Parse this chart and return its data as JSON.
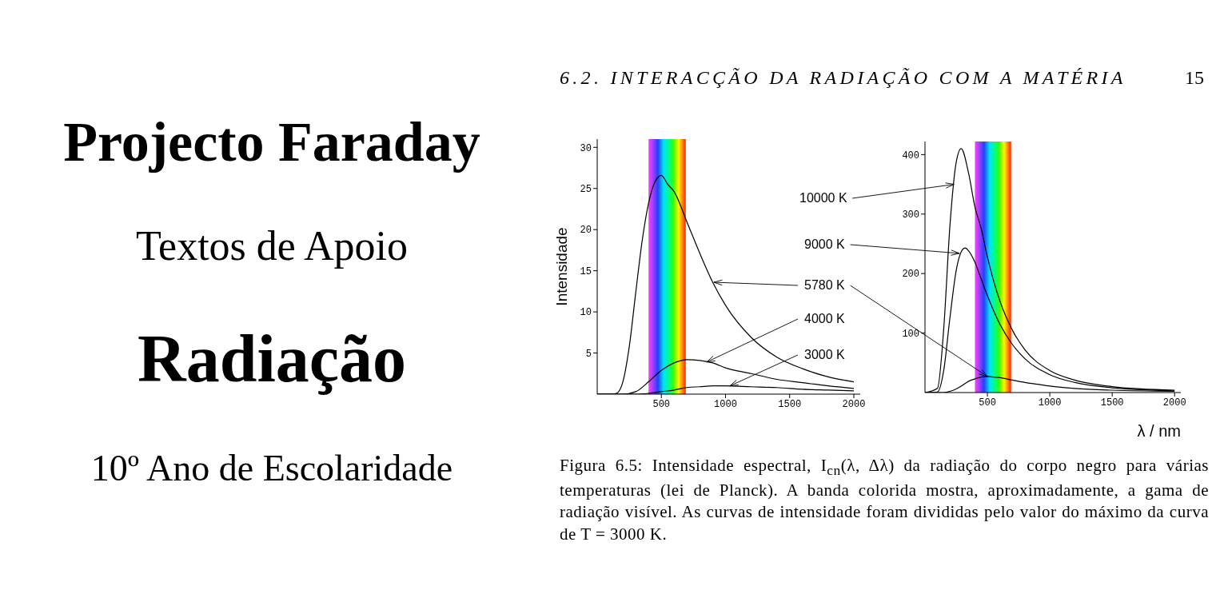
{
  "chart_data": [
    {
      "type": "line",
      "ylabel": "Intensidade",
      "xlim": [
        0,
        2050
      ],
      "ylim": [
        0,
        31
      ],
      "xticks": [
        500,
        1000,
        1500,
        2000
      ],
      "yticks": [
        5,
        10,
        15,
        20,
        25,
        30
      ],
      "annotations": [
        "6.2.  INTERACÇÃO DA RADIAÇÃO COM A MATÉRIA",
        "15",
        "Projecto Faraday",
        "Textos de Apoio",
        "Radiação",
        "10º Ano de Escolaridade",
        {
          "text": "5780 K",
          "x": 909,
          "y": 13.6
        },
        {
          "text": "4000 K",
          "x": 853,
          "y": 3.9
        },
        {
          "text": "3000 K",
          "x": 1034,
          "y": 1.0
        }
      ],
      "bands": [
        {
          "axis": "x",
          "from": 400,
          "to": 690
        }
      ],
      "series": [
        {
          "color": "#000000",
          "x": [
            0,
            100,
            150,
            200,
            250,
            300,
            350,
            400,
            450,
            500,
            550,
            600,
            700,
            800,
            900,
            1000,
            1200,
            1400,
            1600,
            1800,
            2000
          ],
          "values": [
            0,
            0,
            0.1,
            1.5,
            5.8,
            12.3,
            18.6,
            23.2,
            25.8,
            26.6,
            25.5,
            24.6,
            20.9,
            17.1,
            13.6,
            10.8,
            6.9,
            4.5,
            3.1,
            2.1,
            1.5
          ]
        },
        {
          "color": "#000000",
          "x": [
            0,
            200,
            300,
            400,
            500,
            600,
            700,
            800,
            900,
            1000,
            1200,
            1400,
            1600,
            1800,
            2000
          ],
          "values": [
            0,
            0,
            0.3,
            1.5,
            2.9,
            3.8,
            4.2,
            4.1,
            3.8,
            3.2,
            2.5,
            1.8,
            1.4,
            1.0,
            0.7
          ]
        },
        {
          "color": "#000000",
          "x": [
            0,
            300,
            400,
            500,
            600,
            700,
            800,
            900,
            1000,
            1200,
            1400,
            1600,
            1800,
            2000
          ],
          "values": [
            0,
            0,
            0.1,
            0.3,
            0.5,
            0.8,
            0.9,
            1.0,
            1.0,
            0.9,
            0.8,
            0.6,
            0.5,
            0.4
          ]
        }
      ]
    },
    {
      "type": "line",
      "xlabel": "λ /  nm",
      "xlim": [
        0,
        2050
      ],
      "ylim": [
        0,
        422
      ],
      "xticks": [
        500,
        1000,
        1500,
        2000
      ],
      "yticks": [
        100,
        200,
        300,
        400
      ],
      "annotations": [
        "Figura 6.5: Intensidade espectral, I$_{cn}$(λ, Δλ) da radiação do corpo negro para várias temperaturas (lei de Planck).  A banda colorida mostra, aproximadamente, a gama de radiação visível. As curvas de intensidade foram divididas pelo valor do máximo da curva de T = 3000 K.",
        {
          "text": "10000 K",
          "x": 233,
          "y": 350
        },
        {
          "text": "9000 K",
          "x": 276,
          "y": 234
        }
      ],
      "bands": [
        {
          "axis": "x",
          "from": 400,
          "to": 690
        }
      ],
      "series": [
        {
          "color": "#000000",
          "x": [
            0,
            100,
            150,
            200,
            250,
            290,
            350,
            400,
            450,
            500,
            600,
            700,
            800,
            1000,
            1200,
            1500,
            2000
          ],
          "values": [
            0,
            7,
            107,
            281,
            387,
            410,
            368,
            312,
            276,
            228,
            154,
            105,
            72,
            37,
            21,
            10,
            4
          ]
        },
        {
          "color": "#000000",
          "x": [
            0,
            100,
            150,
            200,
            250,
            300,
            322,
            350,
            400,
            450,
            500,
            600,
            700,
            800,
            1000,
            1200,
            1500,
            2000
          ],
          "values": [
            0,
            1,
            37,
            126,
            205,
            240,
            243,
            238,
            219,
            191,
            163,
            115,
            81,
            57,
            30,
            17,
            8,
            3
          ]
        },
        {
          "color": "#000000",
          "x": [
            0,
            150,
            200,
            250,
            300,
            350,
            400,
            450,
            500,
            550,
            600,
            700,
            800,
            900,
            1000,
            1200,
            1500,
            2000
          ],
          "values": [
            0,
            0,
            2,
            6,
            12,
            19,
            23,
            26,
            27,
            26,
            25,
            21,
            17,
            14,
            11,
            7,
            4,
            2
          ]
        }
      ]
    }
  ]
}
